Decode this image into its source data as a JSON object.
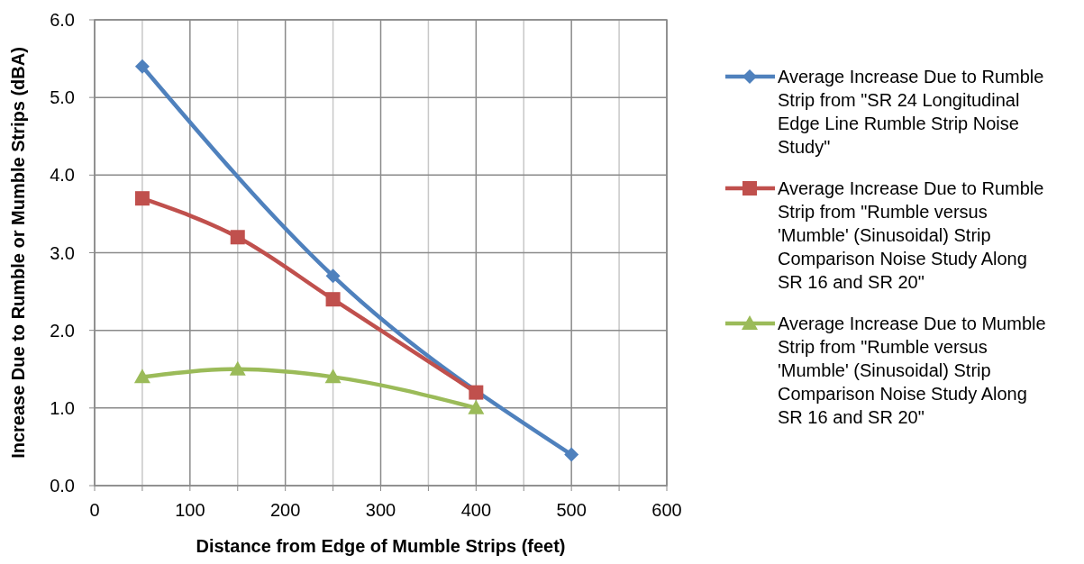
{
  "chart_data": {
    "type": "line",
    "xlabel": "Distance from Edge of Mumble Strips (feet)",
    "ylabel": "Increase Due to Rumble  or Mumble Strips (dBA)",
    "xlim": [
      0,
      600
    ],
    "xticks": [
      0,
      {
        "value": 50,
        "label": null
      },
      100,
      {
        "value": 150,
        "label": null
      },
      200,
      {
        "value": 250,
        "label": null
      },
      300,
      {
        "value": 350,
        "label": null
      },
      400,
      {
        "value": 450,
        "label": null
      },
      500,
      {
        "value": 550,
        "label": null
      },
      600
    ],
    "ylim": [
      0,
      6
    ],
    "yticks": [
      {
        "value": 0,
        "label": "0.0"
      },
      {
        "value": 1,
        "label": "1.0"
      },
      {
        "value": 2,
        "label": "2.0"
      },
      {
        "value": 3,
        "label": "3.0"
      },
      {
        "value": 4,
        "label": "4.0"
      },
      {
        "value": 5,
        "label": "5.0"
      },
      {
        "value": 6,
        "label": "6.0"
      }
    ],
    "grid": true,
    "legend": "right",
    "series": [
      {
        "name": "Average Increase Due to Rumble Strip from \"SR 24 Longitudinal Edge Line Rumble Strip Noise Study\"",
        "color": "#4f81bd",
        "marker": "diamond",
        "x": [
          50,
          250,
          500
        ],
        "values": [
          5.4,
          2.7,
          0.4
        ]
      },
      {
        "name": "Average Increase Due to Rumble Strip from \"Rumble versus 'Mumble' (Sinusoidal) Strip Comparison Noise Study Along SR 16 and SR 20\"",
        "color": "#c0504d",
        "marker": "square",
        "x": [
          50,
          150,
          250,
          400
        ],
        "values": [
          3.7,
          3.2,
          2.4,
          1.2
        ]
      },
      {
        "name": "Average Increase Due to Mumble Strip from \"Rumble versus 'Mumble' (Sinusoidal) Strip Comparison Noise Study Along SR 16 and SR 20\"",
        "color": "#9bbb59",
        "marker": "triangle",
        "x": [
          50,
          150,
          250,
          400
        ],
        "values": [
          1.4,
          1.5,
          1.4,
          1.0
        ]
      }
    ]
  }
}
